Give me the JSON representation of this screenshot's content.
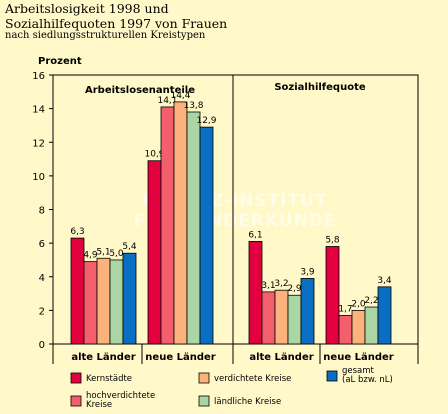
{
  "title_line1": "Arbeitslosigkeit 1998 und",
  "title_line2": "Sozialhilfequoten 1997 von Frauen",
  "subtitle": "nach siedlungsstrukturellen Kreistypen",
  "watermark": "© LEIBNIZ-INSTITUT FÜR LÄNDERKUNDE",
  "colors": {
    "background": "#fff9c9",
    "kernstaedte": "#e2003f",
    "hochverdichtete": "#f35f6c",
    "verdichtete": "#fcb27d",
    "laendliche": "#a9d6a4",
    "gesamt": "#0a6fc2"
  },
  "chart_data": {
    "type": "bar",
    "ylabel": "Prozent",
    "ylim": [
      0,
      16
    ],
    "yticks": [
      0,
      2,
      4,
      6,
      8,
      10,
      12,
      14,
      16
    ],
    "panels": [
      {
        "label": "Arbeitslosenanteile",
        "categories": [
          "alte Länder",
          "neue Länder"
        ],
        "series": [
          {
            "name": "Kernstädte",
            "values": [
              6.3,
              10.9
            ],
            "labels": [
              "6,3",
              "10,9"
            ]
          },
          {
            "name": "hochverdichtete Kreise",
            "values": [
              4.9,
              14.1
            ],
            "labels": [
              "4,9",
              "14,1"
            ]
          },
          {
            "name": "verdichtete Kreise",
            "values": [
              5.1,
              14.4
            ],
            "labels": [
              "5,1",
              "14,4"
            ]
          },
          {
            "name": "ländliche Kreise",
            "values": [
              5.0,
              13.8
            ],
            "labels": [
              "5,0",
              "13,8"
            ]
          },
          {
            "name": "gesamt (aL bzw. nL)",
            "values": [
              5.4,
              12.9
            ],
            "labels": [
              "5,4",
              "12,9"
            ]
          }
        ]
      },
      {
        "label": "Sozialhilfequote",
        "categories": [
          "alte Länder",
          "neue Länder"
        ],
        "series": [
          {
            "name": "Kernstädte",
            "values": [
              6.1,
              5.8
            ],
            "labels": [
              "6,1",
              "5,8"
            ]
          },
          {
            "name": "hochverdichtete Kreise",
            "values": [
              3.1,
              1.7
            ],
            "labels": [
              "3,1",
              "1,7"
            ]
          },
          {
            "name": "verdichtete Kreise",
            "values": [
              3.2,
              2.0
            ],
            "labels": [
              "3,2",
              "2,0"
            ]
          },
          {
            "name": "ländliche Kreise",
            "values": [
              2.9,
              2.2
            ],
            "labels": [
              "2,9",
              "2,2"
            ]
          },
          {
            "name": "gesamt (aL bzw. nL)",
            "values": [
              3.9,
              3.4
            ],
            "labels": [
              "3,9",
              "3,4"
            ]
          }
        ]
      }
    ],
    "legend": {
      "placement": "bottom",
      "items": [
        {
          "lines": [
            "Kernstädte"
          ],
          "color_key": "kernstaedte"
        },
        {
          "lines": [
            "verdichtete Kreise"
          ],
          "color_key": "verdichtete"
        },
        {
          "lines": [
            "gesamt",
            "(aL bzw. nL)"
          ],
          "color_key": "gesamt"
        },
        {
          "lines": [
            "hochverdichtete",
            "Kreise"
          ],
          "color_key": "hochverdichtete"
        },
        {
          "lines": [
            "ländliche Kreise"
          ],
          "color_key": "laendliche"
        }
      ]
    }
  }
}
